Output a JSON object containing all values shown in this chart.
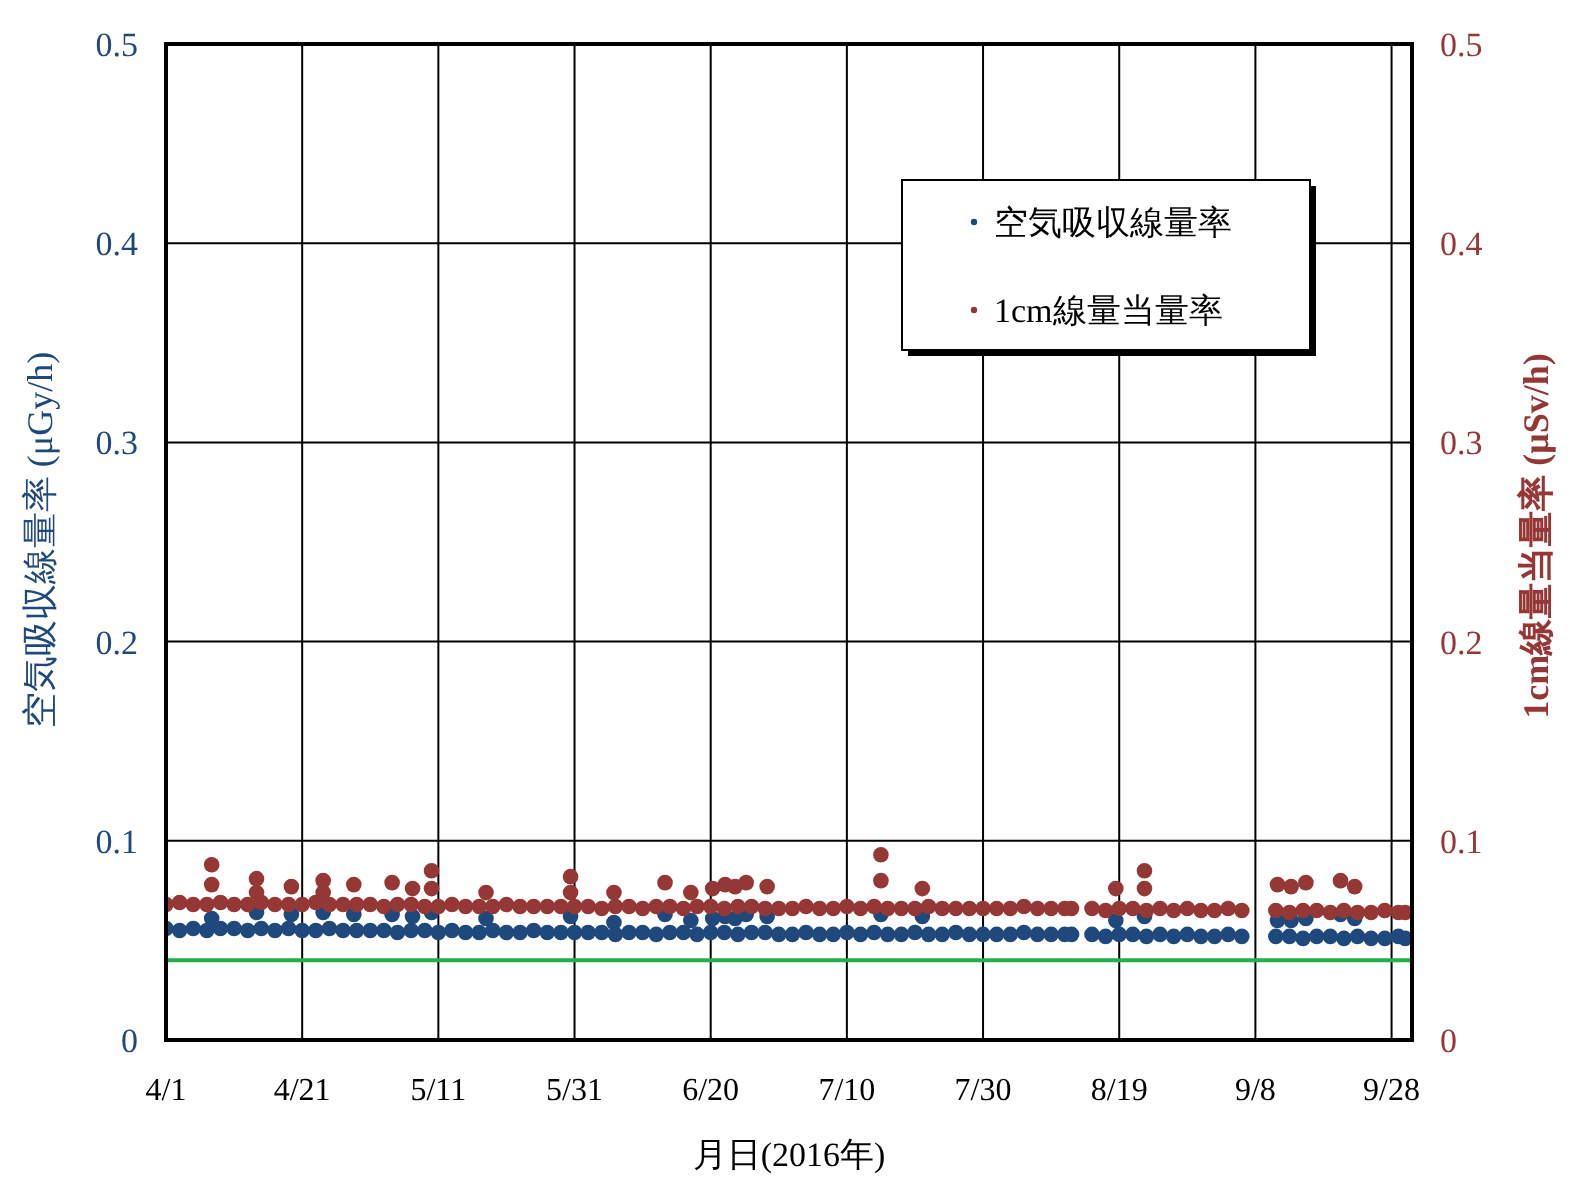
{
  "chart_data": {
    "type": "scatter",
    "xlabel": "月日(2016年)",
    "ylabel": "空気吸収線量率 (μGy/h)",
    "y2label": "1cm線量当量率 (μSv/h)",
    "x": [
      "2016-04-01",
      "2016-04-03",
      "2016-04-05",
      "2016-04-07",
      "2016-04-07T17:00",
      "2016-04-07T17:00",
      "2016-04-09",
      "2016-04-11",
      "2016-04-13",
      "2016-04-14T07:00",
      "2016-04-14T07:00",
      "2016-04-15",
      "2016-04-17",
      "2016-04-19",
      "2016-04-19T10:00",
      "2016-04-21",
      "2016-04-23",
      "2016-04-24T02:00",
      "2016-04-24T02:00",
      "2016-04-25",
      "2016-04-27",
      "2016-04-28T14:00",
      "2016-04-29",
      "2016-05-01",
      "2016-05-03",
      "2016-05-04T05:00",
      "2016-05-05",
      "2016-05-07",
      "2016-05-07T05:00",
      "2016-05-09",
      "2016-05-10T00:00",
      "2016-05-10T00:00",
      "2016-05-11",
      "2016-05-13",
      "2016-05-15",
      "2016-05-17",
      "2016-05-18T00:00",
      "2016-05-19",
      "2016-05-21",
      "2016-05-23",
      "2016-05-25",
      "2016-05-27",
      "2016-05-29",
      "2016-05-30T10:00",
      "2016-05-30T10:00",
      "2016-05-31",
      "2016-06-02",
      "2016-06-04",
      "2016-06-05T19:00",
      "2016-06-06",
      "2016-06-08",
      "2016-06-10",
      "2016-06-12",
      "2016-06-13T07:00",
      "2016-06-14",
      "2016-06-16",
      "2016-06-17T02:00",
      "2016-06-18",
      "2016-06-20",
      "2016-06-20T07:00",
      "2016-06-22",
      "2016-06-22T03:00",
      "2016-06-23T14:00",
      "2016-06-24",
      "2016-06-25T05:00",
      "2016-06-26",
      "2016-06-28",
      "2016-06-28T07:00",
      "2016-06-30",
      "2016-07-02",
      "2016-07-04",
      "2016-07-06",
      "2016-07-08",
      "2016-07-10",
      "2016-07-12",
      "2016-07-14",
      "2016-07-15T00:00",
      "2016-07-15T00:00",
      "2016-07-16",
      "2016-07-18",
      "2016-07-20",
      "2016-07-21T02:00",
      "2016-07-22",
      "2016-07-24",
      "2016-07-26",
      "2016-07-28",
      "2016-07-30",
      "2016-08-01",
      "2016-08-03",
      "2016-08-05",
      "2016-08-07",
      "2016-08-09",
      "2016-08-11",
      "2016-08-12",
      "2016-08-15",
      "2016-08-17",
      "2016-08-18T12:00",
      "2016-08-19",
      "2016-08-21",
      "2016-08-22T17:00",
      "2016-08-22T17:00",
      "2016-08-23",
      "2016-08-25",
      "2016-08-27",
      "2016-08-29",
      "2016-08-31",
      "2016-09-02",
      "2016-09-04",
      "2016-09-06",
      "2016-09-11",
      "2016-09-11T06:00",
      "2016-09-13",
      "2016-09-13T06:00",
      "2016-09-15",
      "2016-09-15T10:00",
      "2016-09-17",
      "2016-09-19",
      "2016-09-20T12:00",
      "2016-09-21",
      "2016-09-22T14:00",
      "2016-09-23",
      "2016-09-25",
      "2016-09-27",
      "2016-09-29",
      "2016-09-30"
    ],
    "series": [
      {
        "name": "空気吸収線量率",
        "color": "#1f497d",
        "values": [
          0.056,
          0.055,
          0.056,
          0.055,
          0.061,
          null,
          0.056,
          0.056,
          0.055,
          0.064,
          null,
          0.056,
          0.055,
          0.056,
          0.063,
          0.055,
          0.055,
          0.064,
          null,
          0.056,
          0.055,
          0.063,
          0.055,
          0.055,
          0.055,
          0.063,
          0.054,
          0.055,
          0.062,
          0.055,
          0.064,
          null,
          0.054,
          0.055,
          0.054,
          0.054,
          0.061,
          0.055,
          0.054,
          0.054,
          0.055,
          0.054,
          0.054,
          0.062,
          null,
          0.054,
          0.054,
          0.054,
          0.059,
          0.053,
          0.054,
          0.054,
          0.053,
          0.063,
          0.054,
          0.054,
          0.06,
          0.053,
          0.054,
          0.061,
          0.054,
          0.062,
          0.061,
          0.053,
          0.063,
          0.054,
          0.054,
          0.062,
          0.053,
          0.053,
          0.054,
          0.053,
          0.053,
          0.054,
          0.053,
          0.054,
          0.063,
          null,
          0.053,
          0.053,
          0.054,
          0.062,
          0.053,
          0.053,
          0.054,
          0.053,
          0.053,
          0.053,
          0.053,
          0.054,
          0.053,
          0.053,
          0.053,
          0.053,
          0.053,
          0.052,
          0.06,
          0.053,
          0.053,
          0.062,
          null,
          0.052,
          0.053,
          0.052,
          0.053,
          0.052,
          0.052,
          0.053,
          0.052,
          0.052,
          0.06,
          0.052,
          0.06,
          0.051,
          0.061,
          0.052,
          0.052,
          0.063,
          0.051,
          0.061,
          0.052,
          0.051,
          0.051,
          0.052,
          0.051
        ]
      },
      {
        "name": "1cm線量当量率",
        "color": "#953735",
        "axis": "y2",
        "values": [
          0.068,
          0.069,
          0.068,
          0.068,
          0.088,
          0.078,
          0.069,
          0.068,
          0.068,
          0.081,
          0.074,
          0.069,
          0.068,
          0.068,
          0.077,
          0.068,
          0.069,
          0.08,
          0.074,
          0.068,
          0.068,
          0.078,
          0.068,
          0.068,
          0.067,
          0.079,
          0.068,
          0.068,
          0.076,
          0.067,
          0.085,
          0.076,
          0.067,
          0.068,
          0.067,
          0.067,
          0.074,
          0.067,
          0.068,
          0.067,
          0.067,
          0.067,
          0.067,
          0.082,
          0.074,
          0.067,
          0.067,
          0.066,
          0.074,
          0.067,
          0.067,
          0.066,
          0.067,
          0.079,
          0.067,
          0.066,
          0.074,
          0.067,
          0.067,
          0.076,
          0.066,
          0.078,
          0.077,
          0.067,
          0.079,
          0.067,
          0.066,
          0.077,
          0.066,
          0.066,
          0.067,
          0.066,
          0.066,
          0.067,
          0.066,
          0.067,
          0.093,
          0.08,
          0.066,
          0.066,
          0.066,
          0.076,
          0.067,
          0.066,
          0.066,
          0.066,
          0.066,
          0.066,
          0.066,
          0.067,
          0.066,
          0.066,
          0.066,
          0.066,
          0.066,
          0.065,
          0.076,
          0.066,
          0.066,
          0.085,
          0.076,
          0.065,
          0.066,
          0.065,
          0.066,
          0.065,
          0.065,
          0.066,
          0.065,
          0.065,
          0.078,
          0.064,
          0.077,
          0.065,
          0.079,
          0.065,
          0.064,
          0.08,
          0.065,
          0.077,
          0.064,
          0.064,
          0.065,
          0.064,
          0.064
        ]
      }
    ],
    "xlim": [
      "2016-04-01",
      "2016-10-01"
    ],
    "xticks": [
      {
        "value": "2016-04-01",
        "label": "4/1"
      },
      {
        "value": "2016-04-21",
        "label": "4/21"
      },
      {
        "value": "2016-05-11",
        "label": "5/11"
      },
      {
        "value": "2016-05-31",
        "label": "5/31"
      },
      {
        "value": "2016-06-20",
        "label": "6/20"
      },
      {
        "value": "2016-07-10",
        "label": "7/10"
      },
      {
        "value": "2016-07-30",
        "label": "7/30"
      },
      {
        "value": "2016-08-19",
        "label": "8/19"
      },
      {
        "value": "2016-09-08",
        "label": "9/8"
      },
      {
        "value": "2016-09-28",
        "label": "9/28"
      }
    ],
    "ylim": [
      0,
      0.5
    ],
    "yticks": [
      0,
      0.1,
      0.2,
      0.3,
      0.4,
      0.5
    ],
    "y2lim": [
      0,
      0.5
    ],
    "y2ticks": [
      0,
      0.1,
      0.2,
      0.3,
      0.4,
      0.5
    ],
    "ref_lines": [
      {
        "axis": "y",
        "value": 0.04,
        "color": "#22b14c"
      }
    ],
    "grid": true,
    "legend": "top right",
    "marker": "circle"
  }
}
